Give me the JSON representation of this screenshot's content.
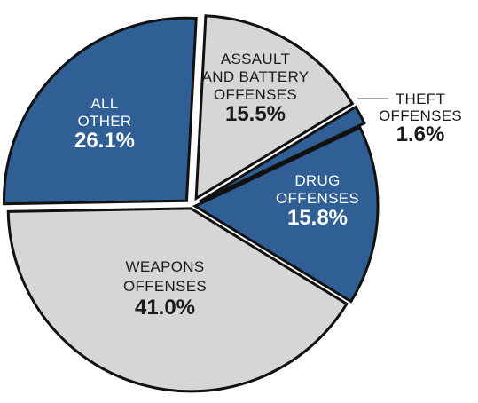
{
  "chart_data": {
    "type": "pie",
    "colors": {
      "dark": "#2f5f94",
      "light": "#d6d6d6",
      "outline": "#111111"
    },
    "slices": [
      {
        "lines": [
          "ASSAULT",
          "AND BATTERY",
          "OFFENSES"
        ],
        "percent_label": "15.5%",
        "value": 15.5,
        "fill": "light"
      },
      {
        "lines": [
          "THEFT",
          "OFFENSES"
        ],
        "percent_label": "1.6%",
        "value": 1.6,
        "fill": "dark"
      },
      {
        "lines": [
          "DRUG",
          "OFFENSES"
        ],
        "percent_label": "15.8%",
        "value": 15.8,
        "fill": "dark"
      },
      {
        "lines": [
          "WEAPONS",
          "OFFENSES"
        ],
        "percent_label": "41.0%",
        "value": 41.0,
        "fill": "light"
      },
      {
        "lines": [
          "ALL",
          "OTHER"
        ],
        "percent_label": "26.1%",
        "value": 26.1,
        "fill": "dark"
      }
    ]
  }
}
